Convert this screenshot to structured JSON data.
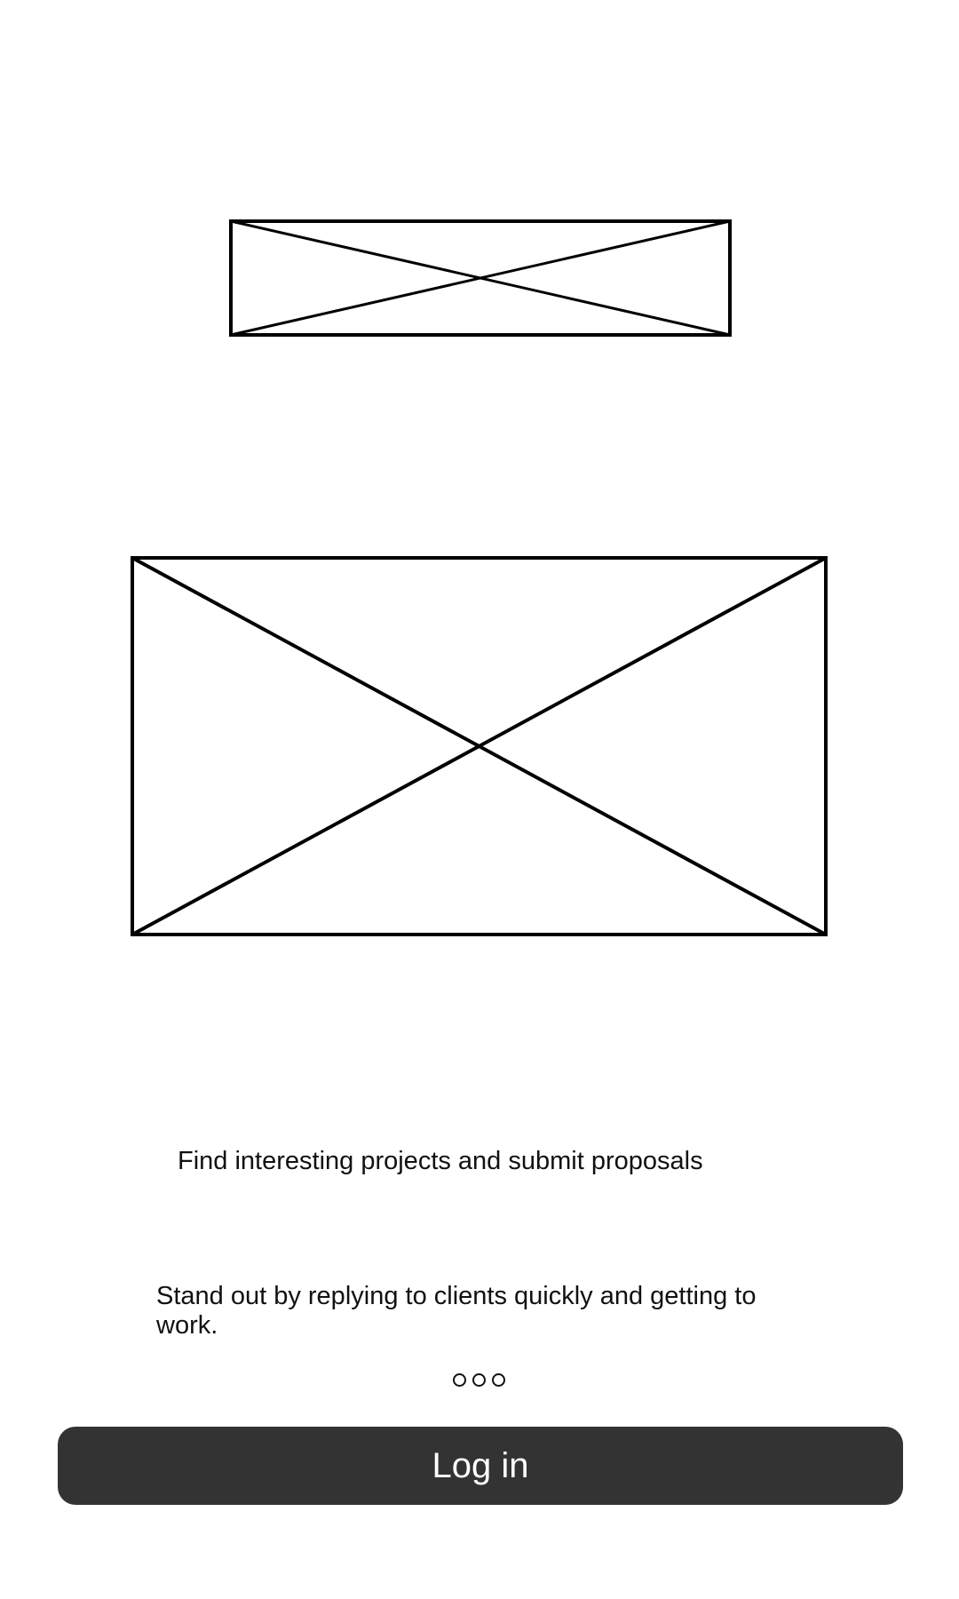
{
  "onboarding": {
    "headline": "Find interesting projects and submit proposals",
    "subtext": "Stand out by replying to clients quickly and getting to work.",
    "pager": {
      "total_pages": 3
    }
  },
  "actions": {
    "login_label": "Log in"
  },
  "colors": {
    "button_background": "#333333",
    "button_text": "#ffffff",
    "text": "#111111",
    "placeholder_stroke": "#000000"
  }
}
